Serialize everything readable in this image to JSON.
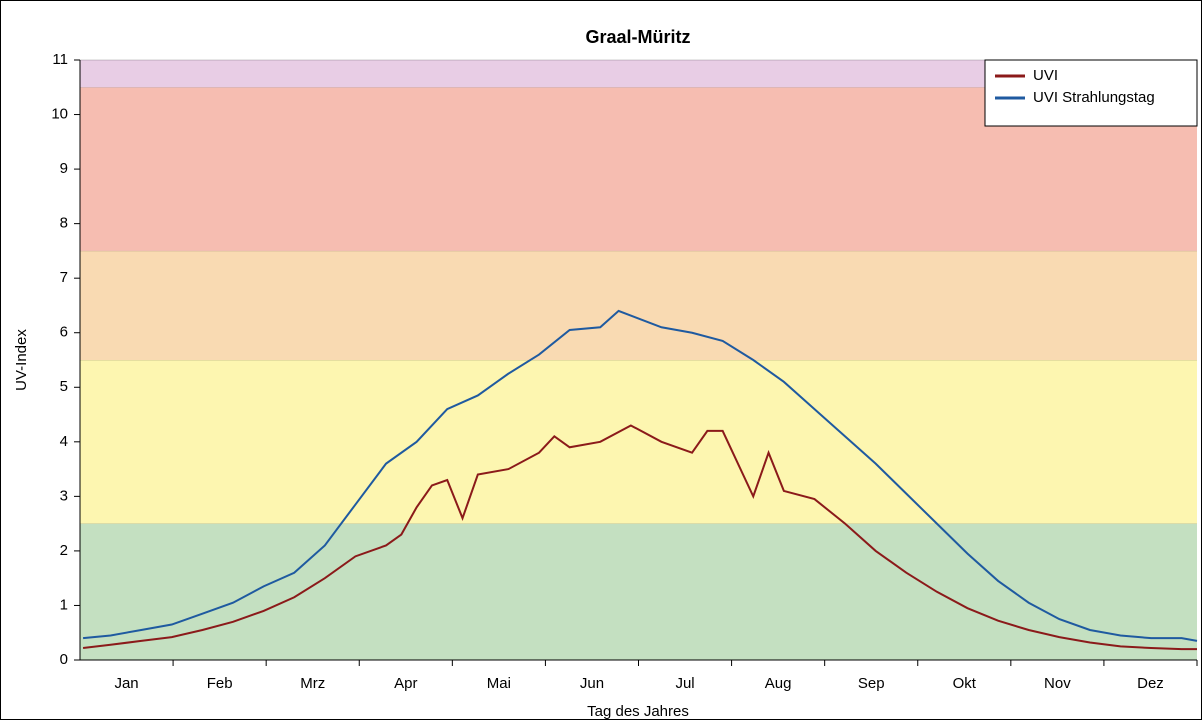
{
  "chart_data": {
    "type": "line",
    "title": "Graal-Müritz",
    "xlabel": "Tag des Jahres",
    "ylabel": "UV-Index",
    "categories": [
      "Jan",
      "Feb",
      "Mrz",
      "Apr",
      "Mai",
      "Jun",
      "Jul",
      "Aug",
      "Sep",
      "Okt",
      "Nov",
      "Dez"
    ],
    "xlim": [
      0,
      365
    ],
    "ylim": [
      0,
      11
    ],
    "yticks": [
      0,
      1,
      2,
      3,
      4,
      5,
      6,
      7,
      8,
      9,
      10,
      11
    ],
    "bands": [
      {
        "from": 0,
        "to": 2.5,
        "color": "#c4e0c1"
      },
      {
        "from": 2.5,
        "to": 5.5,
        "color": "#fdf6b0"
      },
      {
        "from": 5.5,
        "to": 7.5,
        "color": "#f9dab2"
      },
      {
        "from": 7.5,
        "to": 10.5,
        "color": "#f6bdb1"
      },
      {
        "from": 10.5,
        "to": 11,
        "color": "#e8cde5"
      }
    ],
    "legend": "upper right",
    "series": [
      {
        "name": "UVI",
        "color": "#8b1a1a",
        "x": [
          1,
          10,
          20,
          30,
          40,
          50,
          60,
          70,
          80,
          90,
          100,
          105,
          110,
          115,
          120,
          125,
          130,
          140,
          150,
          155,
          160,
          170,
          180,
          190,
          200,
          205,
          210,
          220,
          225,
          230,
          240,
          250,
          260,
          270,
          280,
          290,
          300,
          310,
          320,
          330,
          340,
          350,
          360,
          365
        ],
        "values": [
          0.22,
          0.28,
          0.35,
          0.42,
          0.55,
          0.7,
          0.9,
          1.15,
          1.5,
          1.9,
          2.1,
          2.3,
          2.8,
          3.2,
          3.3,
          2.6,
          3.4,
          3.5,
          3.8,
          4.1,
          3.9,
          4.0,
          4.3,
          4.0,
          3.8,
          4.2,
          4.2,
          3.0,
          3.8,
          3.1,
          2.95,
          2.5,
          2.0,
          1.6,
          1.25,
          0.95,
          0.72,
          0.55,
          0.42,
          0.32,
          0.25,
          0.22,
          0.2,
          0.2
        ]
      },
      {
        "name": "UVI Strahlungstag",
        "color": "#1f5aa0",
        "x": [
          1,
          10,
          20,
          30,
          40,
          50,
          60,
          70,
          80,
          90,
          100,
          110,
          120,
          130,
          140,
          150,
          160,
          170,
          176,
          190,
          200,
          210,
          220,
          230,
          240,
          250,
          260,
          270,
          280,
          290,
          300,
          310,
          320,
          330,
          340,
          350,
          360,
          365
        ],
        "values": [
          0.4,
          0.45,
          0.55,
          0.65,
          0.85,
          1.05,
          1.35,
          1.6,
          2.1,
          2.85,
          3.6,
          4.0,
          4.6,
          4.85,
          5.25,
          5.6,
          6.05,
          6.1,
          6.4,
          6.1,
          6.0,
          5.85,
          5.5,
          5.1,
          4.6,
          4.1,
          3.6,
          3.05,
          2.5,
          1.95,
          1.45,
          1.05,
          0.75,
          0.55,
          0.45,
          0.4,
          0.4,
          0.35
        ]
      }
    ]
  }
}
